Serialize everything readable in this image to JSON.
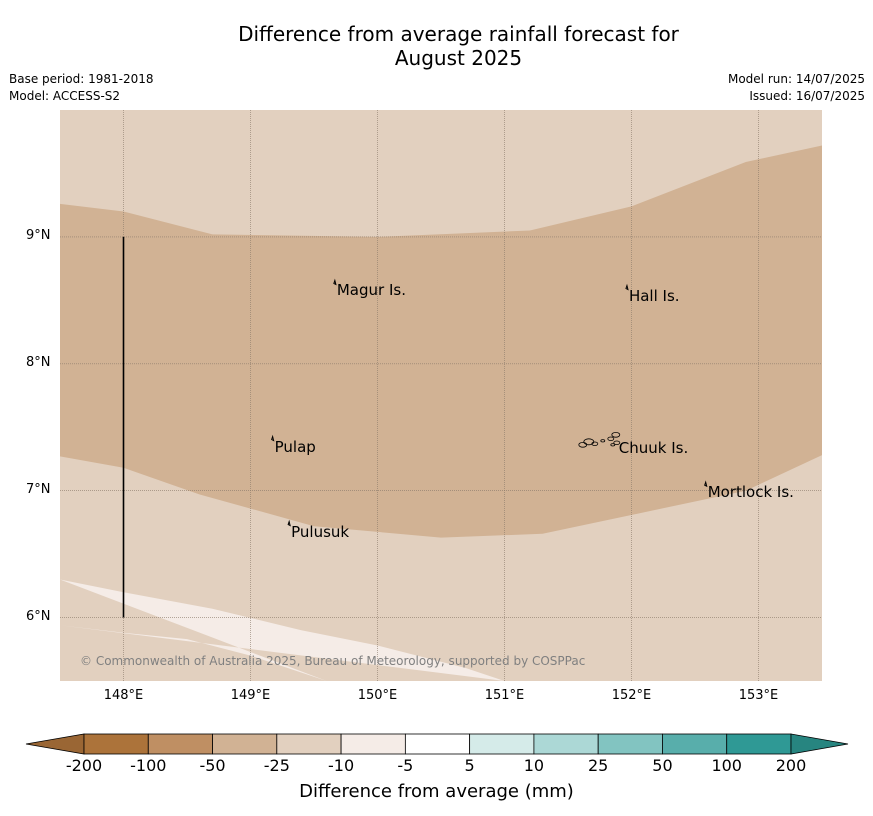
{
  "title_line1": "Difference from average rainfall forecast for",
  "title_line2": "August 2025",
  "base_period": "Base period: 1981-2018",
  "model": "Model: ACCESS-S2",
  "model_run": "Model run: 14/07/2025",
  "issued": "Issued: 16/07/2025",
  "map": {
    "lon_range": [
      147.5,
      153.5
    ],
    "lat_range": [
      5.5,
      10.0
    ],
    "lat_ticks": [
      "9°N",
      "8°N",
      "7°N",
      "6°N"
    ],
    "lon_ticks": [
      "148°E",
      "149°E",
      "150°E",
      "151°E",
      "152°E",
      "153°E"
    ],
    "gridlines": true,
    "background_category": "-25 to -10",
    "bands": [
      {
        "category": "-50 to -25",
        "color": "#d1b294",
        "top_edge": [
          [
            147.5,
            9.26
          ],
          [
            148.0,
            9.2
          ],
          [
            148.7,
            9.02
          ],
          [
            150.0,
            9.0
          ],
          [
            151.2,
            9.05
          ],
          [
            152.0,
            9.24
          ],
          [
            152.9,
            9.59
          ],
          [
            153.5,
            9.72
          ]
        ],
        "bottom_edge": [
          [
            153.5,
            7.28
          ],
          [
            152.9,
            7.0
          ],
          [
            151.3,
            6.66
          ],
          [
            150.5,
            6.63
          ],
          [
            149.5,
            6.72
          ],
          [
            148.6,
            6.97
          ],
          [
            148.0,
            7.18
          ],
          [
            147.5,
            7.27
          ]
        ]
      },
      {
        "category": "-10 to -5",
        "color": "#f5ece7",
        "top_edge": [
          [
            147.5,
            6.3
          ],
          [
            148.0,
            6.2
          ],
          [
            148.7,
            6.07
          ],
          [
            149.4,
            5.9
          ],
          [
            150.0,
            5.78
          ],
          [
            150.7,
            5.6
          ],
          [
            151.0,
            5.5
          ]
        ],
        "bottom_edge": [
          [
            147.5,
            5.94
          ],
          [
            148.0,
            5.88
          ],
          [
            148.5,
            5.83
          ],
          [
            149.0,
            5.7
          ],
          [
            149.6,
            5.5
          ]
        ]
      }
    ],
    "transect_line": {
      "lon": 148.0,
      "lat_from": 6.0,
      "lat_to": 9.0
    },
    "places": [
      {
        "name": "Magur Is.",
        "lon": 149.68,
        "lat": 8.57
      },
      {
        "name": "Hall Is.",
        "lon": 151.98,
        "lat": 8.53
      },
      {
        "name": "Pulap",
        "lon": 149.19,
        "lat": 7.34
      },
      {
        "name": "Chuuk Is.",
        "lon": 151.9,
        "lat": 7.33
      },
      {
        "name": "Mortlock Is.",
        "lon": 152.6,
        "lat": 6.98
      },
      {
        "name": "Pulusuk",
        "lon": 149.32,
        "lat": 6.67
      }
    ],
    "copyright": "© Commonwealth of Australia 2025, Bureau of Meteorology, supported by COSPPac"
  },
  "colorbar": {
    "ticks": [
      "-200",
      "-100",
      "-50",
      "-25",
      "-10",
      "-5",
      "5",
      "10",
      "25",
      "50",
      "100",
      "200"
    ],
    "colors": [
      "#ac733a",
      "#bf8f63",
      "#d1b294",
      "#e2d0bf",
      "#f5ece7",
      "#ffffff",
      "#d5ebe9",
      "#acd8d6",
      "#82c4c1",
      "#58aeab",
      "#2f9995"
    ],
    "extend_low_color": "#9a6634",
    "extend_high_color": "#278580",
    "label": "Difference from average (mm)"
  }
}
